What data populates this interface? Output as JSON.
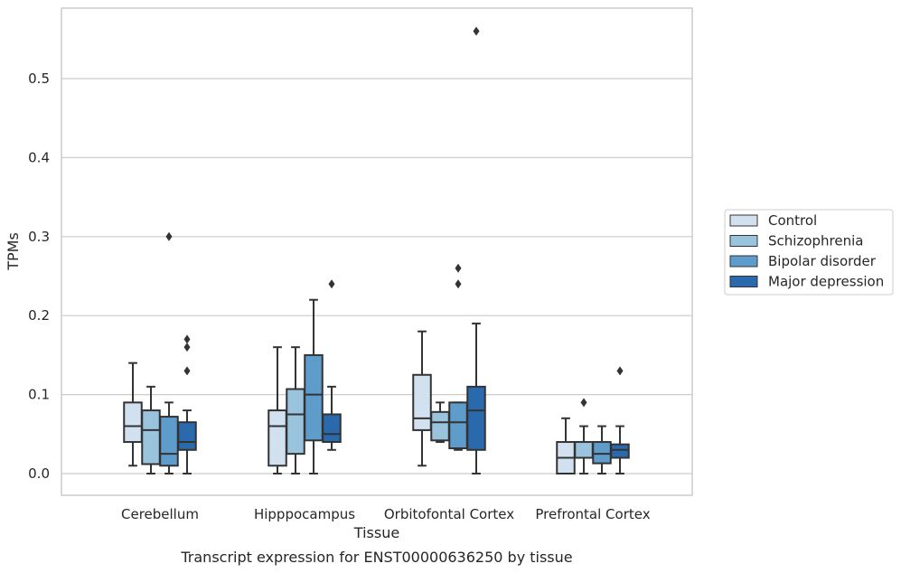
{
  "chart_data": {
    "type": "box",
    "title": "",
    "caption": "Transcript expression for ENST00000636250 by tissue",
    "xlabel": "Tissue",
    "ylabel": "TPMs",
    "ylim": [
      -0.027,
      0.59
    ],
    "yticks": [
      0.0,
      0.1,
      0.2,
      0.3,
      0.4,
      0.5
    ],
    "ytick_labels": [
      "0.0",
      "0.1",
      "0.2",
      "0.3",
      "0.4",
      "0.5"
    ],
    "grid": "horizontal",
    "legend_position": "right",
    "categories": [
      "Cerebellum",
      "Hipppocampus",
      "Orbitofontal Cortex",
      "Prefrontal Cortex"
    ],
    "series": [
      {
        "name": "Control",
        "color": "#d2e1f0",
        "boxes": [
          {
            "whislo": 0.01,
            "q1": 0.04,
            "med": 0.06,
            "q3": 0.09,
            "whishi": 0.14,
            "fliers": []
          },
          {
            "whislo": 0.0,
            "q1": 0.01,
            "med": 0.06,
            "q3": 0.08,
            "whishi": 0.16,
            "fliers": []
          },
          {
            "whislo": 0.01,
            "q1": 0.055,
            "med": 0.07,
            "q3": 0.125,
            "whishi": 0.18,
            "fliers": []
          },
          {
            "whislo": 0.0,
            "q1": 0.0,
            "med": 0.02,
            "q3": 0.04,
            "whishi": 0.07,
            "fliers": []
          }
        ]
      },
      {
        "name": "Schizophrenia",
        "color": "#9ac3de",
        "boxes": [
          {
            "whislo": 0.0,
            "q1": 0.012,
            "med": 0.055,
            "q3": 0.08,
            "whishi": 0.11,
            "fliers": []
          },
          {
            "whislo": 0.0,
            "q1": 0.025,
            "med": 0.075,
            "q3": 0.107,
            "whishi": 0.16,
            "fliers": []
          },
          {
            "whislo": 0.04,
            "q1": 0.042,
            "med": 0.065,
            "q3": 0.078,
            "whishi": 0.09,
            "fliers": []
          },
          {
            "whislo": 0.0,
            "q1": 0.02,
            "med": 0.02,
            "q3": 0.04,
            "whishi": 0.06,
            "fliers": [
              0.09
            ]
          }
        ]
      },
      {
        "name": "Bipolar disorder",
        "color": "#5e9ccb",
        "boxes": [
          {
            "whislo": 0.0,
            "q1": 0.01,
            "med": 0.025,
            "q3": 0.072,
            "whishi": 0.09,
            "fliers": [
              0.3
            ]
          },
          {
            "whislo": 0.0,
            "q1": 0.042,
            "med": 0.1,
            "q3": 0.15,
            "whishi": 0.22,
            "fliers": []
          },
          {
            "whislo": 0.03,
            "q1": 0.032,
            "med": 0.065,
            "q3": 0.09,
            "whishi": 0.09,
            "fliers": [
              0.24,
              0.26
            ]
          },
          {
            "whislo": 0.0,
            "q1": 0.013,
            "med": 0.025,
            "q3": 0.04,
            "whishi": 0.06,
            "fliers": []
          }
        ]
      },
      {
        "name": "Major depression",
        "color": "#2a6aac",
        "boxes": [
          {
            "whislo": 0.0,
            "q1": 0.03,
            "med": 0.04,
            "q3": 0.065,
            "whishi": 0.08,
            "fliers": [
              0.13,
              0.16,
              0.17
            ]
          },
          {
            "whislo": 0.03,
            "q1": 0.04,
            "med": 0.05,
            "q3": 0.075,
            "whishi": 0.11,
            "fliers": [
              0.24
            ]
          },
          {
            "whislo": 0.0,
            "q1": 0.03,
            "med": 0.08,
            "q3": 0.11,
            "whishi": 0.19,
            "fliers": [
              0.56
            ]
          },
          {
            "whislo": 0.0,
            "q1": 0.02,
            "med": 0.03,
            "q3": 0.037,
            "whishi": 0.06,
            "fliers": [
              0.13
            ]
          }
        ]
      }
    ]
  }
}
